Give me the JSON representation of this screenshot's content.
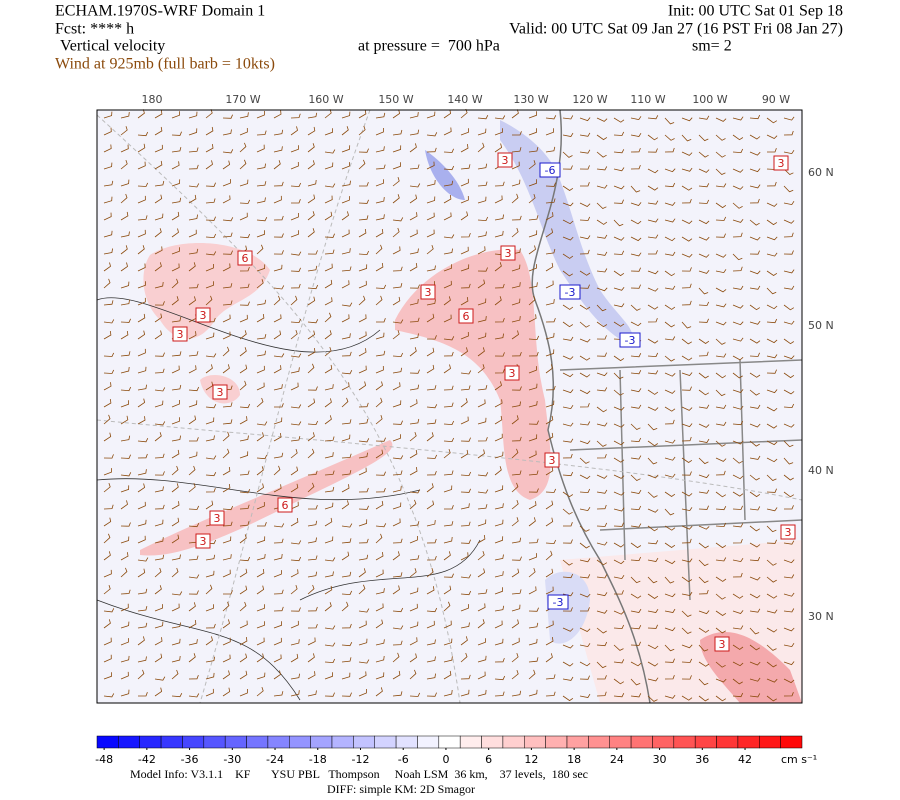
{
  "header": {
    "title": "ECHAM.1970S-WRF Domain 1",
    "init": "Init: 00 UTC Sat 01 Sep 18",
    "fcst": "Fcst: **** h",
    "valid": "Valid: 00 UTC Sat 09 Jan 27 (16 PST Fri 08 Jan 27)",
    "field": "Vertical velocity",
    "level": "at pressure =  700 hPa",
    "smoothing": "sm= 2",
    "wind": "Wind at 925mb (full barb = 10kts)"
  },
  "longitudes": [
    "180",
    "170 W",
    "160 W",
    "150 W",
    "140 W",
    "130 W",
    "120 W",
    "110 W",
    "100 W",
    "90 W"
  ],
  "latitudes": [
    "60 N",
    "50 N",
    "40 N",
    "30 N"
  ],
  "contour_labels": [
    "3",
    "-6",
    "6",
    "3",
    "3",
    "-3",
    "6",
    "3",
    "3",
    "-3",
    "3",
    "3",
    "3",
    "6",
    "3",
    "3",
    "-3",
    "3",
    "3",
    "3"
  ],
  "colorbar": {
    "lim": [
      -49,
      50
    ],
    "ticks": [
      -48,
      -42,
      -36,
      -30,
      -24,
      -18,
      -12,
      -6,
      0,
      6,
      12,
      18,
      24,
      30,
      36,
      42
    ],
    "step": 3,
    "negative_color": "#0000ff",
    "positive_color": "#ff0000",
    "unit": "cm s⁻¹"
  },
  "footer": [
    "Model Info: V3.1.1    KF       YSU PBL   Thompson     Noah LSM  36 km,    37 levels,  180 sec",
    "DIFF: simple KM: 2D Smagor"
  ]
}
